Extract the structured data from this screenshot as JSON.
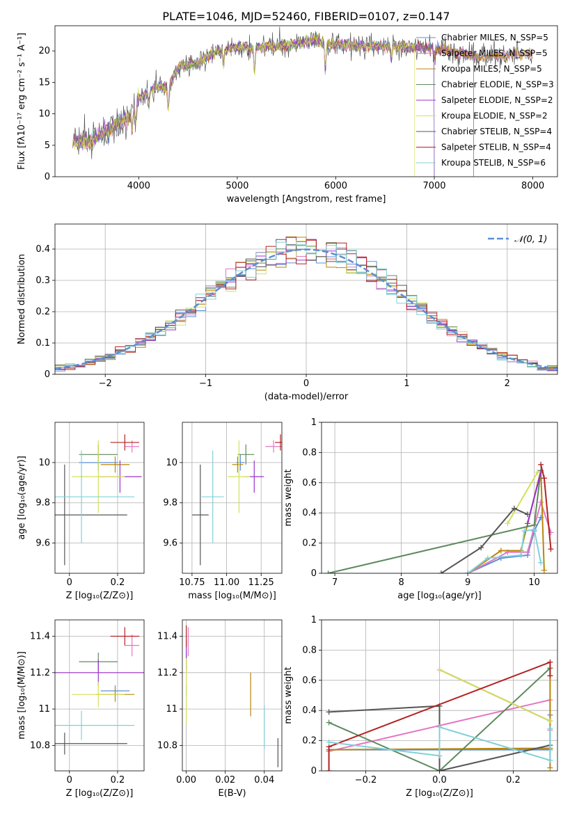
{
  "chart_data": [
    {
      "id": "spectrum",
      "type": "line",
      "title": "PLATE=1046, MJD=52460, FIBERID=0107, z=0.147",
      "xlabel": "wavelength [Angstrom, rest frame]",
      "ylabel": "Flux [fλ10⁻¹⁷ erg cm⁻² s⁻¹ A⁻¹]",
      "xlim": [
        3150,
        8250
      ],
      "ylim": [
        0,
        24
      ],
      "xticks": [
        4000,
        5000,
        6000,
        7000,
        8000
      ],
      "yticks": [
        0,
        5,
        10,
        15,
        20
      ],
      "grid": false,
      "legend_position": "top-right",
      "legend": [
        {
          "name": "Chabrier MILES, N_SSP=5",
          "color": "#5b8fd6"
        },
        {
          "name": "Salpeter MILES, N_SSP=5",
          "color": "#e377c2"
        },
        {
          "name": "Kroupa MILES, N_SSP=5",
          "color": "#b8860b"
        },
        {
          "name": "Chabrier ELODIE, N_SSP=3",
          "color": "#5e8a5e"
        },
        {
          "name": "Salpeter ELODIE, N_SSP=2",
          "color": "#9932cc"
        },
        {
          "name": "Kroupa ELODIE, N_SSP=2",
          "color": "#d4e157"
        },
        {
          "name": "Chabrier STELIB, N_SSP=4",
          "color": "#555555"
        },
        {
          "name": "Salpeter STELIB, N_SSP=4",
          "color": "#b22222"
        },
        {
          "name": "Kroupa STELIB, N_SSP=6",
          "color": "#80d0d8"
        }
      ],
      "continuum_points": [
        [
          3330,
          5.6
        ],
        [
          3500,
          5.6
        ],
        [
          3700,
          7.5
        ],
        [
          3900,
          9.5
        ],
        [
          4000,
          12.5
        ],
        [
          4200,
          14.5
        ],
        [
          4300,
          14.0
        ],
        [
          4400,
          17.5
        ],
        [
          4600,
          18.0
        ],
        [
          4800,
          20.0
        ],
        [
          5000,
          20.5
        ],
        [
          5200,
          20.5
        ],
        [
          5400,
          20.8
        ],
        [
          5600,
          21.0
        ],
        [
          5800,
          21.8
        ],
        [
          5900,
          21.0
        ],
        [
          6000,
          21.0
        ],
        [
          6300,
          20.8
        ],
        [
          6600,
          20.8
        ],
        [
          6800,
          20.5
        ],
        [
          7000,
          20.5
        ],
        [
          7200,
          19.8
        ],
        [
          7500,
          19.0
        ],
        [
          7800,
          19.5
        ],
        [
          8000,
          19.5
        ]
      ]
    },
    {
      "id": "residuals",
      "type": "step",
      "xlabel": "(data-model)/error",
      "ylabel": "Normed distribution",
      "xlim": [
        -2.5,
        2.5
      ],
      "ylim": [
        0,
        0.48
      ],
      "xticks": [
        -2,
        -1,
        0,
        1,
        2
      ],
      "yticks": [
        0.0,
        0.1,
        0.2,
        0.3,
        0.4
      ],
      "grid": true,
      "legend_position": "top-right",
      "reference_curve": {
        "label": "𝒩(0, 1)",
        "mean": 0,
        "sigma": 1,
        "color": "#5b8fd6"
      },
      "bin_width": 0.1
    },
    {
      "id": "z-age",
      "type": "errorbar",
      "xlabel": "Z [log₁₀(Z/Z⊙)]",
      "ylabel": "age  [log₁₀(age/yr)]",
      "xlim": [
        -0.06,
        0.31
      ],
      "ylim": [
        9.45,
        10.2
      ],
      "xticks": [
        0.0,
        0.2
      ],
      "yticks": [
        9.6,
        9.8,
        10.0
      ],
      "grid": true,
      "points": [
        {
          "series": 0,
          "x": 0.12,
          "y": 10.0,
          "xerr": 0.08,
          "yerr": 0.04
        },
        {
          "series": 1,
          "x": 0.26,
          "y": 10.08,
          "xerr": 0.03,
          "yerr": 0.03
        },
        {
          "series": 2,
          "x": 0.19,
          "y": 9.99,
          "xerr": 0.06,
          "yerr": 0.04
        },
        {
          "series": 3,
          "x": 0.12,
          "y": 10.04,
          "xerr": 0.08,
          "yerr": 0.05
        },
        {
          "series": 4,
          "x": 0.21,
          "y": 9.93,
          "xerr": 0.09,
          "yerr": 0.08
        },
        {
          "series": 5,
          "x": 0.12,
          "y": 9.93,
          "xerr": 0.11,
          "yerr": 0.18
        },
        {
          "series": 6,
          "x": -0.02,
          "y": 9.74,
          "xerr": 0.26,
          "yerr": 0.25
        },
        {
          "series": 7,
          "x": 0.23,
          "y": 10.1,
          "xerr": 0.06,
          "yerr": 0.04
        },
        {
          "series": 8,
          "x": 0.05,
          "y": 9.83,
          "xerr": 0.22,
          "yerr": 0.23
        }
      ]
    },
    {
      "id": "mass-age",
      "type": "errorbar",
      "xlabel": "mass [log₁₀(M/M⊙)]",
      "xlim": [
        10.68,
        11.4
      ],
      "ylim": [
        9.45,
        10.2
      ],
      "xticks": [
        10.75,
        11.0,
        11.25
      ],
      "xticklabels": [
        "10.75",
        "11.00",
        "11.25"
      ],
      "yticks": [
        9.6,
        9.8,
        10.0
      ],
      "grid": true,
      "points": [
        {
          "series": 0,
          "x": 11.1,
          "y": 10.0,
          "xerr": 0.03,
          "yerr": 0.04
        },
        {
          "series": 1,
          "x": 11.34,
          "y": 10.08,
          "xerr": 0.06,
          "yerr": 0.03
        },
        {
          "series": 2,
          "x": 11.08,
          "y": 9.99,
          "xerr": 0.04,
          "yerr": 0.04
        },
        {
          "series": 3,
          "x": 11.14,
          "y": 10.04,
          "xerr": 0.06,
          "yerr": 0.05
        },
        {
          "series": 4,
          "x": 11.2,
          "y": 9.93,
          "xerr": 0.07,
          "yerr": 0.08
        },
        {
          "series": 5,
          "x": 11.09,
          "y": 9.93,
          "xerr": 0.08,
          "yerr": 0.18
        },
        {
          "series": 6,
          "x": 10.81,
          "y": 9.74,
          "xerr": 0.06,
          "yerr": 0.25
        },
        {
          "series": 7,
          "x": 11.39,
          "y": 10.1,
          "xerr": 0.04,
          "yerr": 0.04
        },
        {
          "series": 8,
          "x": 10.9,
          "y": 9.83,
          "xerr": 0.08,
          "yerr": 0.23
        }
      ]
    },
    {
      "id": "age-weight",
      "type": "line",
      "xlabel": "age  [log₁₀(age/yr)]",
      "ylabel": "mass weight",
      "xlim": [
        6.8,
        10.35
      ],
      "ylim": [
        0,
        1.0
      ],
      "xticks": [
        7,
        8,
        9,
        10
      ],
      "yticks": [
        0.0,
        0.2,
        0.4,
        0.6,
        0.8,
        1.0
      ],
      "grid": true,
      "series": [
        {
          "series": 0,
          "x": [
            9.0,
            9.5,
            9.9,
            10.0,
            10.1
          ],
          "y": [
            0.0,
            0.1,
            0.12,
            0.28,
            0.37
          ]
        },
        {
          "series": 1,
          "x": [
            9.0,
            9.6,
            9.9,
            10.1,
            10.25
          ],
          "y": [
            0.0,
            0.14,
            0.14,
            0.47,
            0.27
          ]
        },
        {
          "series": 2,
          "x": [
            9.0,
            9.5,
            9.8,
            10.1,
            10.15
          ],
          "y": [
            0.0,
            0.15,
            0.15,
            0.68,
            0.02
          ]
        },
        {
          "series": 3,
          "x": [
            6.9,
            10.0,
            10.1
          ],
          "y": [
            0.0,
            0.32,
            0.68
          ]
        },
        {
          "series": 4,
          "x": [
            9.9,
            10.1
          ],
          "y": [
            0.33,
            0.67
          ]
        },
        {
          "series": 5,
          "x": [
            9.6,
            10.05
          ],
          "y": [
            0.33,
            0.67
          ]
        },
        {
          "series": 6,
          "x": [
            8.6,
            9.2,
            9.7,
            9.9
          ],
          "y": [
            0.0,
            0.17,
            0.43,
            0.39
          ]
        },
        {
          "series": 7,
          "x": [
            10.1,
            10.15,
            10.25
          ],
          "y": [
            0.72,
            0.63,
            0.16
          ]
        },
        {
          "series": 8,
          "x": [
            9.0,
            9.3,
            9.8,
            9.85,
            10.0,
            10.1
          ],
          "y": [
            0.0,
            0.1,
            0.12,
            0.28,
            0.29,
            0.07
          ]
        }
      ]
    },
    {
      "id": "z-mass",
      "type": "errorbar",
      "xlabel": "Z [log₁₀(Z/Z⊙)]",
      "ylabel": "mass [log₁₀(M/M⊙)]",
      "xlim": [
        -0.06,
        0.31
      ],
      "ylim": [
        10.66,
        11.49
      ],
      "xticks": [
        0.0,
        0.2
      ],
      "yticks": [
        10.8,
        11.0,
        11.2,
        11.4
      ],
      "grid": true,
      "points": [
        {
          "series": 0,
          "x": 0.19,
          "y": 11.1,
          "xerr": 0.06,
          "yerr": 0.03
        },
        {
          "series": 1,
          "x": 0.26,
          "y": 11.35,
          "xerr": 0.03,
          "yerr": 0.06
        },
        {
          "series": 2,
          "x": 0.19,
          "y": 11.08,
          "xerr": 0.08,
          "yerr": 0.04
        },
        {
          "series": 3,
          "x": 0.12,
          "y": 11.26,
          "xerr": 0.08,
          "yerr": 0.05
        },
        {
          "series": 4,
          "x": 0.12,
          "y": 11.2,
          "xerr": 0.2,
          "yerr": 0.07
        },
        {
          "series": 5,
          "x": 0.12,
          "y": 11.08,
          "xerr": 0.11,
          "yerr": 0.07
        },
        {
          "series": 6,
          "x": -0.02,
          "y": 10.81,
          "xerr": 0.26,
          "yerr": 0.06
        },
        {
          "series": 7,
          "x": 0.23,
          "y": 11.4,
          "xerr": 0.06,
          "yerr": 0.05
        },
        {
          "series": 8,
          "x": 0.05,
          "y": 10.91,
          "xerr": 0.22,
          "yerr": 0.08
        }
      ]
    },
    {
      "id": "ebv-mass",
      "type": "errorbar",
      "xlabel": "E(B-V)",
      "xlim": [
        -0.002,
        0.049
      ],
      "ylim": [
        10.66,
        11.49
      ],
      "xticks": [
        0.0,
        0.02,
        0.04
      ],
      "xticklabels": [
        "0.00",
        "0.02",
        "0.04"
      ],
      "yticks": [
        10.8,
        11.0,
        11.2,
        11.4
      ],
      "grid": true,
      "points": [
        {
          "series": 0,
          "x": 0.0,
          "y": 11.1,
          "xerr": 0.0,
          "yerr": 0.03
        },
        {
          "series": 1,
          "x": 0.001,
          "y": 11.37,
          "xerr": 0.0,
          "yerr": 0.08
        },
        {
          "series": 2,
          "x": 0.033,
          "y": 11.08,
          "xerr": 0.0,
          "yerr": 0.12
        },
        {
          "series": 3,
          "x": 0.0,
          "y": 11.26,
          "xerr": 0.0,
          "yerr": 0.05
        },
        {
          "series": 4,
          "x": 0.0,
          "y": 11.3,
          "xerr": 0.0,
          "yerr": 0.08
        },
        {
          "series": 5,
          "x": 0.0,
          "y": 11.1,
          "xerr": 0.0,
          "yerr": 0.18
        },
        {
          "series": 6,
          "x": 0.047,
          "y": 10.76,
          "xerr": 0.0,
          "yerr": 0.08
        },
        {
          "series": 7,
          "x": 0.0,
          "y": 11.4,
          "xerr": 0.0,
          "yerr": 0.06
        },
        {
          "series": 8,
          "x": 0.04,
          "y": 10.9,
          "xerr": 0.0,
          "yerr": 0.12
        }
      ]
    },
    {
      "id": "z-weight",
      "type": "line",
      "xlabel": "Z [log₁₀(Z/Z⊙)]",
      "ylabel": "mass weight",
      "xlim": [
        -0.32,
        0.32
      ],
      "ylim": [
        0,
        1.0
      ],
      "xticks": [
        -0.2,
        0.0,
        0.2
      ],
      "xticklabels": [
        "−0.2",
        "0.0",
        "0.2"
      ],
      "yticks": [
        0.0,
        0.2,
        0.4,
        0.6,
        0.8,
        1.0
      ],
      "grid": true,
      "series": [
        {
          "series": 0,
          "x": [
            -0.3,
            0.3,
            0.3
          ],
          "y": [
            0.14,
            0.14,
            0.37
          ]
        },
        {
          "series": 1,
          "x": [
            -0.3,
            0.3,
            0.3
          ],
          "y": [
            0.13,
            0.47,
            0.27
          ]
        },
        {
          "series": 2,
          "x": [
            -0.3,
            0.3,
            0.3,
            0.3
          ],
          "y": [
            0.14,
            0.15,
            0.02,
            0.68
          ]
        },
        {
          "series": 3,
          "x": [
            -0.3,
            0.0,
            0.3
          ],
          "y": [
            0.32,
            0.0,
            0.68
          ]
        },
        {
          "series": 4,
          "x": [
            0.0,
            0.3
          ],
          "y": [
            0.67,
            0.33
          ]
        },
        {
          "series": 5,
          "x": [
            0.0,
            0.3
          ],
          "y": [
            0.67,
            0.33
          ]
        },
        {
          "series": 6,
          "x": [
            -0.3,
            0.0,
            0.0,
            0.3
          ],
          "y": [
            0.39,
            0.43,
            0.0,
            0.17
          ]
        },
        {
          "series": 7,
          "x": [
            -0.3,
            -0.3,
            0.3,
            0.3
          ],
          "y": [
            0.0,
            0.16,
            0.72,
            0.63
          ]
        },
        {
          "series": 8,
          "x": [
            -0.3,
            0.0,
            0.0,
            0.3,
            0.3
          ],
          "y": [
            0.19,
            0.1,
            0.29,
            0.07,
            0.28
          ]
        }
      ]
    }
  ]
}
